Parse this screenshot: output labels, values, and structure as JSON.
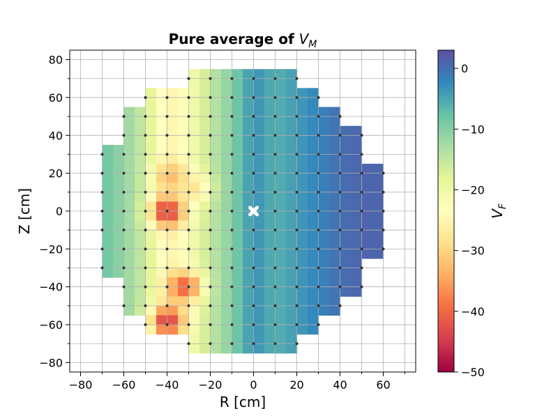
{
  "chart_data": {
    "type": "heatmap",
    "title": "Pure average of V_M",
    "title_prefix": "Pure average of ",
    "title_symbol": "V",
    "title_subscript": "M",
    "xlabel": "R [cm]",
    "ylabel": "Z [cm]",
    "colorbar_symbol": "V",
    "colorbar_subscript": "F",
    "xlim": [
      -85,
      75
    ],
    "ylim": [
      -85,
      85
    ],
    "xticks": [
      -80,
      -60,
      -40,
      -20,
      0,
      20,
      40,
      60
    ],
    "yticks": [
      -80,
      -60,
      -40,
      -20,
      0,
      20,
      40,
      60,
      80
    ],
    "xtick_labels": [
      "−80",
      "−60",
      "−40",
      "−20",
      "0",
      "20",
      "40",
      "60"
    ],
    "ytick_labels": [
      "−80",
      "−60",
      "−40",
      "−20",
      "0",
      "20",
      "40",
      "60",
      "80"
    ],
    "colorbar_range": [
      -50,
      3
    ],
    "colorbar_ticks": [
      0,
      -10,
      -20,
      -30,
      -40,
      -50
    ],
    "colorbar_tick_labels": [
      "0",
      "−10",
      "−20",
      "−30",
      "−40",
      "−50"
    ],
    "colormap": "Spectral",
    "grid": true,
    "grid_spacing": 10,
    "measurement_grid": [
      {
        "z": 70,
        "r": [
          -30,
          20
        ]
      },
      {
        "z": 60,
        "r": [
          -50,
          30
        ]
      },
      {
        "z": 50,
        "r": [
          -60,
          40
        ]
      },
      {
        "z": 40,
        "r": [
          -60,
          50
        ]
      },
      {
        "z": 30,
        "r": [
          -70,
          50
        ]
      },
      {
        "z": 20,
        "r": [
          -70,
          60
        ]
      },
      {
        "z": 10,
        "r": [
          -70,
          60
        ]
      },
      {
        "z": 0,
        "r": [
          -70,
          60
        ]
      },
      {
        "z": -10,
        "r": [
          -70,
          60
        ]
      },
      {
        "z": -20,
        "r": [
          -70,
          60
        ]
      },
      {
        "z": -30,
        "r": [
          -70,
          50
        ]
      },
      {
        "z": -40,
        "r": [
          -60,
          50
        ]
      },
      {
        "z": -50,
        "r": [
          -60,
          40
        ]
      },
      {
        "z": -60,
        "r": [
          -50,
          30
        ]
      },
      {
        "z": -70,
        "r": [
          -30,
          20
        ]
      }
    ],
    "vf_profile": [
      {
        "r": -70,
        "v": -8
      },
      {
        "r": -60,
        "v": -11
      },
      {
        "r": -50,
        "v": -16
      },
      {
        "r": -40,
        "v": -26
      },
      {
        "r": -30,
        "v": -22
      },
      {
        "r": -20,
        "v": -15
      },
      {
        "r": -10,
        "v": -10
      },
      {
        "r": 0,
        "v": -3
      },
      {
        "r": 10,
        "v": -6
      },
      {
        "r": 20,
        "v": -4
      },
      {
        "r": 30,
        "v": -2
      },
      {
        "r": 40,
        "v": 0
      },
      {
        "r": 50,
        "v": 1
      },
      {
        "r": 60,
        "v": 1
      }
    ],
    "hotspots": [
      {
        "r": -40,
        "z": 0,
        "v": -45
      },
      {
        "r": -38,
        "z": 18,
        "v": -33
      },
      {
        "r": -32,
        "z": -40,
        "v": -41
      },
      {
        "r": -40,
        "z": -58,
        "v": -44
      },
      {
        "r": -28,
        "z": 12,
        "v": -28
      }
    ],
    "marker": {
      "r": 0,
      "z": 0,
      "symbol": "X",
      "color": "#ffffff"
    }
  }
}
